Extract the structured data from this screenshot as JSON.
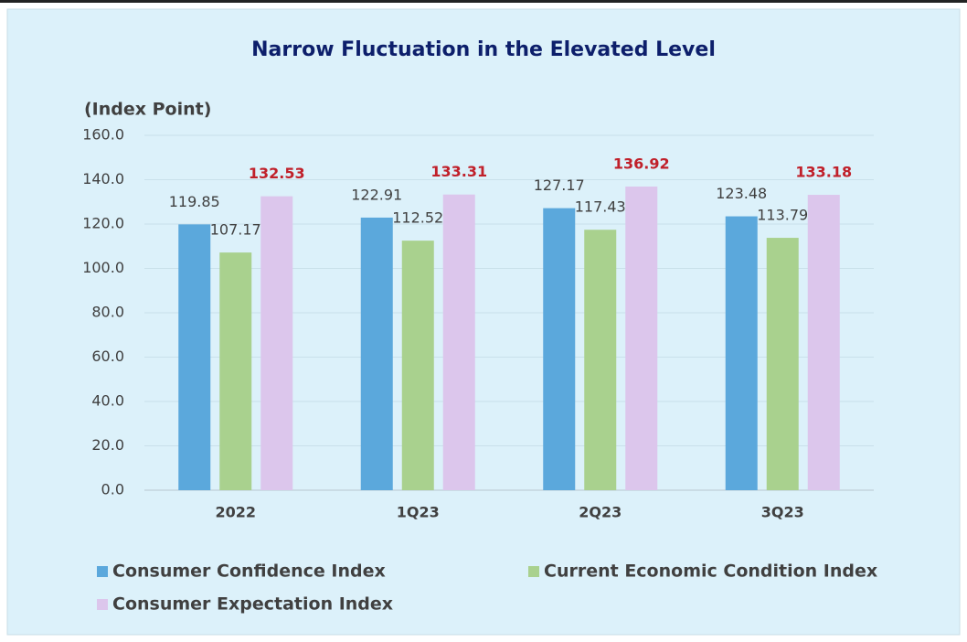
{
  "chart_data": {
    "type": "bar",
    "title": "Narrow Fluctuation in the Elevated Level",
    "y_label": "(Index Point)",
    "categories": [
      "2022",
      "1Q23",
      "2Q23",
      "3Q23"
    ],
    "series": [
      {
        "name": "Consumer Confidence Index",
        "color": "#5ba8dc",
        "values": [
          119.85,
          122.91,
          127.17,
          123.48
        ]
      },
      {
        "name": "Current Economic Condition Index",
        "color": "#a9d18e",
        "values": [
          107.17,
          112.52,
          117.43,
          113.79
        ]
      },
      {
        "name": "Consumer Expectation Index",
        "color": "#dcc6ec",
        "values": [
          132.53,
          133.31,
          136.92,
          133.18
        ]
      }
    ],
    "ylim": [
      0,
      160
    ],
    "yticks": [
      {
        "value": 0,
        "label": "0.0"
      },
      {
        "value": 20,
        "label": "20.0"
      },
      {
        "value": 40,
        "label": "40.0"
      },
      {
        "value": 60,
        "label": "60.0"
      },
      {
        "value": 80,
        "label": "80.0"
      },
      {
        "value": 100,
        "label": "100.0"
      },
      {
        "value": 120,
        "label": "120.0"
      },
      {
        "value": 140,
        "label": "140.0"
      },
      {
        "value": 160,
        "label": "160.0"
      }
    ],
    "grid": true,
    "legend": "bottom"
  }
}
